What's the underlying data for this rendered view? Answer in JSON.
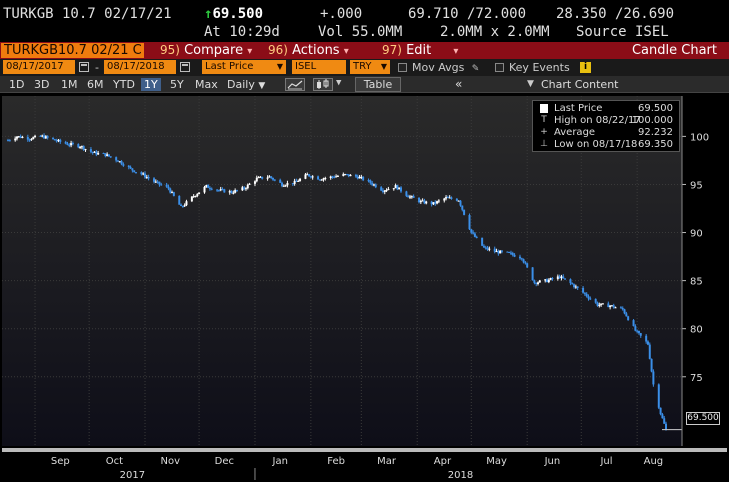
{
  "quote": {
    "security": "TURKGB 10.7 02/17/21",
    "last_price": "69.500",
    "change": "+.000",
    "bid_ask": "69.710 /72.000",
    "range": "28.350 /26.690",
    "time": "At 10:29d",
    "volume": "Vol 55.0MM",
    "size": "2.0MM x 2.0MM",
    "source": "Source ISEL"
  },
  "command_bar": {
    "ticker": "TURKGB10.7 02/21 C",
    "compare_num": "95)",
    "compare_label": "Compare",
    "actions_num": "96)",
    "actions_label": "Actions",
    "edit_num": "97)",
    "edit_label": "Edit",
    "title": "Candle Chart"
  },
  "params": {
    "start_date": "08/17/2017",
    "end_date": "08/17/2018",
    "field": "Last Price",
    "source": "ISEL",
    "currency": "TRY",
    "mov_avgs_label": "Mov Avgs",
    "key_events_label": "Key Events",
    "info_glyph": "i"
  },
  "toolbar": {
    "ranges": [
      "1D",
      "3D",
      "1M",
      "6M",
      "YTD",
      "1Y",
      "5Y",
      "Max"
    ],
    "selected_range": "1Y",
    "frequency": "Daily",
    "table_label": "Table",
    "collapse_glyph": "«",
    "chart_content_label": "Chart Content"
  },
  "legend": {
    "last_price_label": "Last Price",
    "last_price_value": "69.500",
    "high_label": "High on 08/22/17",
    "high_value": "100.000",
    "average_label": "Average",
    "average_value": "92.232",
    "low_label": "Low on 08/17/18",
    "low_value": "69.350"
  },
  "current_price_tag": "69.500",
  "colors": {
    "up": "#ffffff",
    "down": "#3b8fe8",
    "grid": "#3a3a3a",
    "command_bar": "#8b0d17",
    "param_field": "#f08a12"
  },
  "chart_data": {
    "type": "candlestick",
    "title": "",
    "xlabel": "",
    "ylabel": "",
    "ylim": [
      67.8,
      104.2
    ],
    "y_ticks": [
      100,
      95,
      90,
      85,
      80,
      75
    ],
    "x_month_labels": [
      "Sep",
      "Oct",
      "Nov",
      "Dec",
      "Jan",
      "Feb",
      "Mar",
      "Apr",
      "May",
      "Jun",
      "Jul",
      "Aug"
    ],
    "year_labels": [
      "2017",
      "2018"
    ],
    "grid": true,
    "series": [
      {
        "points": [
          [
            "2017-08-17",
            99.6
          ],
          [
            "2017-08-22",
            100.0
          ],
          [
            "2017-08-29",
            99.8
          ],
          [
            "2017-09-05",
            100.0
          ],
          [
            "2017-09-12",
            99.6
          ],
          [
            "2017-09-19",
            99.2
          ],
          [
            "2017-09-26",
            99.0
          ],
          [
            "2017-10-03",
            98.3
          ],
          [
            "2017-10-10",
            98.1
          ],
          [
            "2017-10-17",
            97.5
          ],
          [
            "2017-10-24",
            96.6
          ],
          [
            "2017-10-31",
            96.0
          ],
          [
            "2017-11-07",
            95.2
          ],
          [
            "2017-11-14",
            94.6
          ],
          [
            "2017-11-21",
            92.6
          ],
          [
            "2017-11-28",
            93.8
          ],
          [
            "2017-12-05",
            94.8
          ],
          [
            "2017-12-12",
            94.4
          ],
          [
            "2017-12-19",
            94.2
          ],
          [
            "2017-12-26",
            94.6
          ],
          [
            "2018-01-02",
            95.6
          ],
          [
            "2018-01-09",
            95.8
          ],
          [
            "2018-01-16",
            95.0
          ],
          [
            "2018-01-23",
            95.2
          ],
          [
            "2018-01-30",
            96.0
          ],
          [
            "2018-02-06",
            95.6
          ],
          [
            "2018-02-13",
            95.8
          ],
          [
            "2018-02-20",
            96.0
          ],
          [
            "2018-02-27",
            95.8
          ],
          [
            "2018-03-06",
            95.2
          ],
          [
            "2018-03-13",
            94.4
          ],
          [
            "2018-03-20",
            94.8
          ],
          [
            "2018-03-27",
            93.8
          ],
          [
            "2018-04-03",
            93.2
          ],
          [
            "2018-04-10",
            93.0
          ],
          [
            "2018-04-17",
            93.6
          ],
          [
            "2018-04-24",
            93.4
          ],
          [
            "2018-05-01",
            90.0
          ],
          [
            "2018-05-08",
            88.4
          ],
          [
            "2018-05-15",
            88.0
          ],
          [
            "2018-05-22",
            87.8
          ],
          [
            "2018-05-29",
            87.4
          ],
          [
            "2018-06-05",
            84.8
          ],
          [
            "2018-06-12",
            85.0
          ],
          [
            "2018-06-19",
            85.4
          ],
          [
            "2018-06-26",
            84.6
          ],
          [
            "2018-07-03",
            83.6
          ],
          [
            "2018-07-10",
            82.5
          ],
          [
            "2018-07-17",
            82.4
          ],
          [
            "2018-07-24",
            82.0
          ],
          [
            "2018-07-31",
            79.8
          ],
          [
            "2018-08-07",
            78.4
          ],
          [
            "2018-08-10",
            74.2
          ],
          [
            "2018-08-14",
            71.2
          ],
          [
            "2018-08-17",
            69.5
          ]
        ]
      }
    ]
  }
}
